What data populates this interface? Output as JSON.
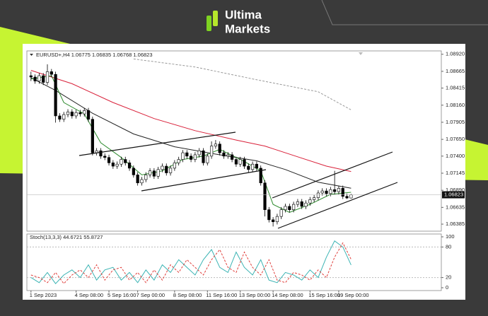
{
  "brand": {
    "line1": "Ultima",
    "line2": "Markets"
  },
  "chart_data": [
    {
      "type": "candlestick",
      "title": "EURUSD+,H4 1.06775 1.06835 1.06768 1.06823",
      "up_color": "#ffffff",
      "down_color": "#000000",
      "ylim": [
        1.0628,
        1.0897
      ],
      "xlim": [
        -1,
        100
      ],
      "yticks": [
        {
          "value": 1.0892,
          "label": "1.08920"
        },
        1.08665,
        1.08415,
        {
          "value": 1.0816,
          "label": "1.08160"
        },
        1.07905,
        {
          "value": 1.0765,
          "label": "1.07650"
        },
        {
          "value": 1.074,
          "label": "1.07400"
        },
        1.07145,
        {
          "value": 1.0689,
          "label": "1.06890"
        },
        1.06635,
        1.06385
      ],
      "xticks": [
        {
          "value": 0,
          "label": "1 Sep 2023"
        },
        {
          "value": 11,
          "label": "4 Sep 08:00"
        },
        {
          "value": 19,
          "label": "5 Sep 16:00"
        },
        {
          "value": 26,
          "label": "7 Sep 00:00"
        },
        {
          "value": 35,
          "label": "8 Sep 08:00"
        },
        {
          "value": 43,
          "label": "11 Sep 16:00"
        },
        {
          "value": 51,
          "label": "13 Sep 00:00"
        },
        {
          "value": 59,
          "label": "14 Sep 08:00"
        },
        {
          "value": 68,
          "label": "15 Sep 16:00"
        },
        {
          "value": 75,
          "label": "19 Sep 00:00"
        }
      ],
      "last_price": 1.06823,
      "ohlc": [
        [
          1.086,
          1.0866,
          1.0852,
          1.0858
        ],
        [
          1.0858,
          1.0862,
          1.0848,
          1.0852
        ],
        [
          1.0852,
          1.0864,
          1.0848,
          1.086
        ],
        [
          1.086,
          1.0864,
          1.0846,
          1.085
        ],
        [
          1.085,
          1.0877,
          1.0846,
          1.0866
        ],
        [
          1.0866,
          1.087,
          1.0858,
          1.0862
        ],
        [
          1.0862,
          1.0866,
          1.079,
          1.08
        ],
        [
          1.08,
          1.0804,
          1.0791,
          1.0795
        ],
        [
          1.0795,
          1.0806,
          1.0791,
          1.0802
        ],
        [
          1.0802,
          1.081,
          1.0798,
          1.0806
        ],
        [
          1.0806,
          1.081,
          1.0796,
          1.08
        ],
        [
          1.08,
          1.0809,
          1.0796,
          1.0805
        ],
        [
          1.0805,
          1.0809,
          1.0799,
          1.0803
        ],
        [
          1.0803,
          1.0812,
          1.0799,
          1.0808
        ],
        [
          1.0808,
          1.0812,
          1.0791,
          1.0795
        ],
        [
          1.0795,
          1.0799,
          1.0741,
          1.0745
        ],
        [
          1.0745,
          1.0752,
          1.0741,
          1.0748
        ],
        [
          1.0748,
          1.0752,
          1.0736,
          1.074
        ],
        [
          1.074,
          1.0744,
          1.0734,
          1.0738
        ],
        [
          1.0738,
          1.0742,
          1.0726,
          1.073
        ],
        [
          1.073,
          1.0734,
          1.0721,
          1.0725
        ],
        [
          1.0725,
          1.0732,
          1.0721,
          1.0728
        ],
        [
          1.0728,
          1.0739,
          1.0724,
          1.0735
        ],
        [
          1.0735,
          1.0739,
          1.0726,
          1.073
        ],
        [
          1.073,
          1.0734,
          1.0718,
          1.0722
        ],
        [
          1.0722,
          1.0726,
          1.0708,
          1.0712
        ],
        [
          1.0712,
          1.0716,
          1.0696,
          1.07
        ],
        [
          1.07,
          1.0709,
          1.0696,
          1.0705
        ],
        [
          1.0705,
          1.0716,
          1.0701,
          1.0712
        ],
        [
          1.0712,
          1.0722,
          1.0708,
          1.0718
        ],
        [
          1.0718,
          1.0722,
          1.0706,
          1.071
        ],
        [
          1.071,
          1.0724,
          1.0706,
          1.072
        ],
        [
          1.072,
          1.0729,
          1.0716,
          1.0725
        ],
        [
          1.0725,
          1.0729,
          1.0711,
          1.0715
        ],
        [
          1.0715,
          1.0726,
          1.0711,
          1.0722
        ],
        [
          1.0722,
          1.0734,
          1.0718,
          1.073
        ],
        [
          1.073,
          1.0739,
          1.0726,
          1.0735
        ],
        [
          1.0735,
          1.0749,
          1.0731,
          1.0745
        ],
        [
          1.0745,
          1.0749,
          1.0736,
          1.074
        ],
        [
          1.074,
          1.0744,
          1.0731,
          1.0735
        ],
        [
          1.0735,
          1.0746,
          1.0731,
          1.0742
        ],
        [
          1.0742,
          1.0752,
          1.0738,
          1.0748
        ],
        [
          1.0748,
          1.0752,
          1.0726,
          1.073
        ],
        [
          1.073,
          1.0744,
          1.0726,
          1.074
        ],
        [
          1.074,
          1.0762,
          1.0736,
          1.0755
        ],
        [
          1.0755,
          1.0764,
          1.0751,
          1.0758
        ],
        [
          1.0758,
          1.0762,
          1.0741,
          1.0745
        ],
        [
          1.0745,
          1.0749,
          1.0736,
          1.074
        ],
        [
          1.074,
          1.0746,
          1.0736,
          1.0742
        ],
        [
          1.0742,
          1.0746,
          1.0731,
          1.0735
        ],
        [
          1.0735,
          1.0739,
          1.0724,
          1.0728
        ],
        [
          1.0728,
          1.0739,
          1.0724,
          1.0735
        ],
        [
          1.0735,
          1.0739,
          1.0721,
          1.0725
        ],
        [
          1.0725,
          1.0729,
          1.0716,
          1.072
        ],
        [
          1.072,
          1.0732,
          1.0716,
          1.0728
        ],
        [
          1.0728,
          1.0732,
          1.0718,
          1.0722
        ],
        [
          1.0722,
          1.0726,
          1.0696,
          1.07
        ],
        [
          1.07,
          1.0704,
          1.065,
          1.066
        ],
        [
          1.066,
          1.0664,
          1.0641,
          1.0645
        ],
        [
          1.0645,
          1.0649,
          1.0635,
          1.0642
        ],
        [
          1.0642,
          1.0654,
          1.0638,
          1.065
        ],
        [
          1.065,
          1.0664,
          1.0646,
          1.066
        ],
        [
          1.066,
          1.0669,
          1.0656,
          1.0665
        ],
        [
          1.0665,
          1.0669,
          1.0656,
          1.066
        ],
        [
          1.066,
          1.0672,
          1.0656,
          1.0668
        ],
        [
          1.0668,
          1.0676,
          1.0664,
          1.0672
        ],
        [
          1.0672,
          1.0676,
          1.0661,
          1.0665
        ],
        [
          1.0665,
          1.0674,
          1.0661,
          1.067
        ],
        [
          1.067,
          1.0679,
          1.0666,
          1.0675
        ],
        [
          1.0675,
          1.0682,
          1.0671,
          1.0678
        ],
        [
          1.0678,
          1.0689,
          1.0674,
          1.0685
        ],
        [
          1.0685,
          1.0692,
          1.0681,
          1.0688
        ],
        [
          1.0688,
          1.0692,
          1.068,
          1.0684
        ],
        [
          1.0684,
          1.0694,
          1.068,
          1.069
        ],
        [
          1.069,
          1.0718,
          1.0683,
          1.0687
        ],
        [
          1.0687,
          1.0696,
          1.0683,
          1.0692
        ],
        [
          1.0692,
          1.0696,
          1.0676,
          1.068
        ],
        [
          1.068,
          1.0684,
          1.0676,
          1.06775
        ],
        [
          1.06775,
          1.06835,
          1.06768,
          1.06823
        ]
      ],
      "series": [
        {
          "color": "#999999",
          "dash": true,
          "x": [
            25,
            40,
            55,
            70,
            78
          ],
          "values": [
            1.0885,
            1.0873,
            1.0854,
            1.0836,
            1.0809
          ]
        },
        {
          "color": "#d9213a",
          "x": [
            0,
            10,
            20,
            30,
            40,
            50,
            57,
            65,
            72,
            78
          ],
          "values": [
            1.0868,
            1.0848,
            1.082,
            1.0796,
            1.0778,
            1.0764,
            1.0755,
            1.0739,
            1.0725,
            1.0717
          ]
        },
        {
          "color": "#222222",
          "x": [
            0,
            6,
            15,
            25,
            35,
            45,
            55,
            62,
            70,
            78
          ],
          "values": [
            1.0857,
            1.0838,
            1.0804,
            1.0773,
            1.0754,
            1.0743,
            1.0733,
            1.072,
            1.0701,
            1.0692
          ]
        },
        {
          "color": "#2e8b2e",
          "x": [
            0,
            5,
            8,
            13,
            17,
            22,
            27,
            32,
            37,
            42,
            46,
            52,
            56,
            59,
            63,
            68,
            73,
            78
          ],
          "values": [
            1.0855,
            1.086,
            1.082,
            1.0803,
            1.076,
            1.0738,
            1.0712,
            1.0718,
            1.0735,
            1.074,
            1.075,
            1.0732,
            1.0718,
            1.0668,
            1.0656,
            1.0668,
            1.0683,
            1.0686
          ]
        }
      ]
    },
    {
      "type": "line",
      "title": "Stoch(13,3,3) 44.6721 55.8727",
      "ylim": [
        0,
        100
      ],
      "xlim": [
        -1,
        100
      ],
      "yticks": [
        100,
        80,
        20,
        0
      ],
      "levels": [
        80,
        20
      ],
      "x": [
        0,
        2,
        4,
        6,
        8,
        10,
        12,
        14,
        16,
        18,
        20,
        22,
        24,
        26,
        28,
        30,
        32,
        34,
        36,
        38,
        40,
        42,
        44,
        46,
        48,
        50,
        52,
        54,
        56,
        58,
        60,
        62,
        64,
        66,
        68,
        70,
        72,
        74,
        76,
        78
      ],
      "series": [
        {
          "color": "#3cb4b4",
          "values": [
            20,
            10,
            30,
            8,
            25,
            35,
            20,
            45,
            15,
            35,
            40,
            15,
            30,
            10,
            35,
            15,
            45,
            30,
            55,
            40,
            25,
            55,
            75,
            40,
            30,
            70,
            40,
            25,
            55,
            15,
            10,
            30,
            25,
            15,
            35,
            20,
            60,
            92,
            80,
            44.6721
          ]
        },
        {
          "color": "#e0403c",
          "dash": true,
          "values": [
            25,
            20,
            10,
            30,
            8,
            25,
            35,
            20,
            45,
            15,
            35,
            40,
            15,
            30,
            10,
            35,
            15,
            45,
            30,
            55,
            40,
            25,
            55,
            75,
            40,
            30,
            70,
            40,
            25,
            55,
            15,
            10,
            30,
            25,
            15,
            35,
            20,
            60,
            88,
            55.8727
          ]
        }
      ]
    }
  ]
}
